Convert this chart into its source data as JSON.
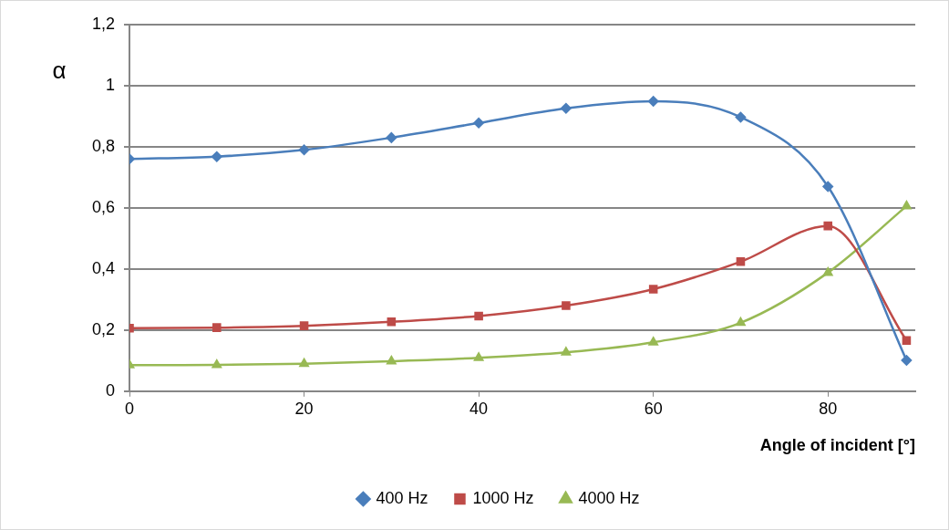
{
  "chart_data": {
    "type": "line",
    "xlabel": "Angle of incident [°]",
    "ylabel": "α",
    "x": [
      0,
      10,
      20,
      30,
      40,
      50,
      60,
      70,
      80,
      89
    ],
    "series": [
      {
        "name": "400 Hz",
        "color": "#4a7ebb",
        "marker": "diamond",
        "values": [
          0.76,
          0.768,
          0.79,
          0.83,
          0.878,
          0.926,
          0.949,
          0.897,
          0.67,
          0.101
        ]
      },
      {
        "name": "1000 Hz",
        "color": "#be4b48",
        "marker": "square",
        "values": [
          0.206,
          0.208,
          0.214,
          0.227,
          0.246,
          0.28,
          0.334,
          0.424,
          0.541,
          0.166
        ]
      },
      {
        "name": "4000 Hz",
        "color": "#98b954",
        "marker": "triangle",
        "values": [
          0.085,
          0.086,
          0.09,
          0.098,
          0.109,
          0.127,
          0.16,
          0.224,
          0.388,
          0.606
        ]
      }
    ],
    "xlim": [
      0,
      90
    ],
    "xticks": [
      0,
      20,
      40,
      60,
      80
    ],
    "ylim": [
      0,
      1.2
    ],
    "yticks": [
      0,
      {
        "value": 0.2,
        "label": "0,2"
      },
      {
        "value": 0.4,
        "label": "0,4"
      },
      {
        "value": 0.6,
        "label": "0,6"
      },
      {
        "value": 0.8,
        "label": "0,8"
      },
      1,
      {
        "value": 1.2,
        "label": "1,2"
      }
    ],
    "grid": "y",
    "legend": "bottom",
    "line_style": "solid"
  }
}
